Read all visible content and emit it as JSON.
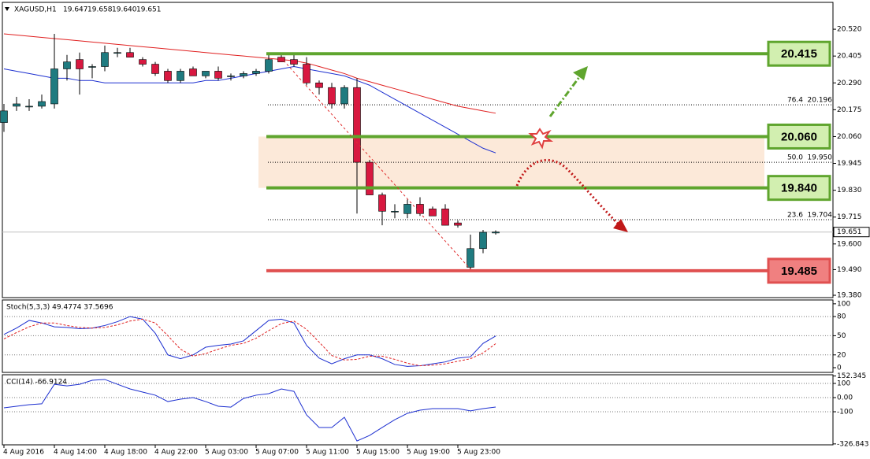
{
  "header": {
    "symbol": "XAGUSD,H1",
    "ohlc": [
      19.647,
      19.658,
      {
        "value": 19.64,
        "label": "19.640"
      },
      19.651
    ]
  },
  "chart_data": [
    {
      "type": "candlestick",
      "categories": [
        "4 Aug 2016",
        null,
        null,
        null,
        "4 Aug 14:00",
        null,
        null,
        null,
        "4 Aug 18:00",
        null,
        null,
        null,
        "4 Aug 22:00",
        null,
        null,
        null,
        "5 Aug 03:00",
        null,
        null,
        null,
        "5 Aug 07:00",
        null,
        null,
        null,
        "5 Aug 11:00",
        null,
        null,
        null,
        "5 Aug 15:00",
        null,
        null,
        null,
        "5 Aug 19:00",
        null,
        null,
        null,
        "5 Aug 23:00",
        null,
        null,
        null
      ],
      "open": [
        20.12,
        20.19,
        20.19,
        20.19,
        20.2,
        20.35,
        20.39,
        20.36,
        20.36,
        20.42,
        20.42,
        20.39,
        20.37,
        20.34,
        20.3,
        20.35,
        20.32,
        20.34,
        20.32,
        20.32,
        20.33,
        20.34,
        20.4,
        20.39,
        20.37,
        20.29,
        20.27,
        20.2,
        20.27,
        19.95,
        19.81,
        19.74,
        19.73,
        19.77,
        19.75,
        19.75,
        19.69,
        19.5,
        19.58,
        19.647
      ],
      "high": [
        20.2,
        20.23,
        20.22,
        20.24,
        20.5,
        20.41,
        20.42,
        20.37,
        20.45,
        20.44,
        20.44,
        20.4,
        20.38,
        20.35,
        20.35,
        20.36,
        20.34,
        20.36,
        20.33,
        20.34,
        20.35,
        20.41,
        20.41,
        20.41,
        20.4,
        20.3,
        20.29,
        20.28,
        20.31,
        19.96,
        19.82,
        19.77,
        19.79,
        19.8,
        19.76,
        19.77,
        19.7,
        19.64,
        19.66,
        19.658
      ],
      "low": [
        20.08,
        20.17,
        20.17,
        20.18,
        20.18,
        20.3,
        20.24,
        20.31,
        20.34,
        20.4,
        20.4,
        20.36,
        20.32,
        20.29,
        20.29,
        20.32,
        20.31,
        20.3,
        20.3,
        20.31,
        20.32,
        20.33,
        20.38,
        20.36,
        20.28,
        20.24,
        20.18,
        20.18,
        19.73,
        19.81,
        19.68,
        19.71,
        19.71,
        19.72,
        19.72,
        19.68,
        19.67,
        19.49,
        19.56,
        19.64
      ],
      "close": [
        20.17,
        20.2,
        20.19,
        20.21,
        20.35,
        20.38,
        20.35,
        20.36,
        20.42,
        20.42,
        20.4,
        20.37,
        20.33,
        20.3,
        20.34,
        20.32,
        20.34,
        20.31,
        20.32,
        20.33,
        20.34,
        20.39,
        20.38,
        20.37,
        20.29,
        20.27,
        20.2,
        20.27,
        19.95,
        19.81,
        19.74,
        19.74,
        19.77,
        19.73,
        19.72,
        19.68,
        19.68,
        19.58,
        19.65,
        19.651
      ],
      "up_color": "#1f7b80",
      "down_color": "#d81840",
      "series": [
        {
          "color": "#e02020",
          "values": [
            20.5,
            20.495,
            20.49,
            20.485,
            20.48,
            20.475,
            20.47,
            20.465,
            20.46,
            20.455,
            20.45,
            20.445,
            20.44,
            20.435,
            20.43,
            20.425,
            20.42,
            20.415,
            20.41,
            20.405,
            20.4,
            20.395,
            20.39,
            20.385,
            20.375,
            20.36,
            20.345,
            20.33,
            20.31,
            20.295,
            20.28,
            20.265,
            20.25,
            20.235,
            20.22,
            20.205,
            20.19,
            20.18,
            20.17,
            20.16
          ]
        },
        {
          "color": "#1c2fd0",
          "values": [
            20.35,
            20.34,
            20.33,
            20.32,
            20.31,
            20.31,
            20.3,
            20.3,
            20.29,
            20.29,
            20.29,
            20.29,
            20.29,
            20.29,
            20.29,
            20.29,
            20.3,
            20.3,
            20.31,
            20.32,
            20.33,
            20.34,
            20.35,
            20.36,
            20.35,
            20.34,
            20.33,
            20.32,
            20.3,
            20.28,
            20.25,
            20.22,
            20.19,
            20.16,
            20.13,
            20.1,
            20.07,
            20.04,
            20.01,
            19.99
          ]
        }
      ],
      "ylim": [
        19.37,
        20.635
      ],
      "yticks": [
        {
          "value": 20.52,
          "label": "20.520"
        },
        20.405,
        {
          "value": 20.29,
          "label": "20.290"
        },
        20.175,
        {
          "value": 20.06,
          "label": "20.060"
        },
        19.945,
        {
          "value": 19.83,
          "label": "19.830"
        },
        19.715,
        {
          "value": 19.6,
          "label": "19.600"
        },
        {
          "value": 19.49,
          "label": "19.490"
        },
        {
          "value": 19.38,
          "label": "19.380"
        }
      ],
      "levels": [
        {
          "price": 20.415,
          "color": "#5fa52e",
          "box_color": "#d2efb0"
        },
        {
          "price": {
            "value": 20.06,
            "label": "20.060"
          },
          "color": "#5fa52e",
          "box_color": "#d2efb0"
        },
        {
          "price": {
            "value": 19.84,
            "label": "19.840"
          },
          "color": "#5fa52e",
          "box_color": "#d2efb0"
        },
        {
          "price": 19.485,
          "color": "#e05050",
          "box_color": "#f08080"
        }
      ],
      "zone_color": "#fbe3cf",
      "fib": [
        {
          "ratio": 76.4,
          "price": 20.196
        },
        {
          "ratio": {
            "value": 50,
            "label": "50.0"
          },
          "price": {
            "value": 19.95,
            "label": "19.950"
          }
        },
        {
          "ratio": 23.6,
          "price": 19.704
        }
      ],
      "last_price": 19.651
    },
    {
      "type": "line",
      "title": "Stoch(5,3,3) 49.4774 37.5696",
      "series": [
        {
          "color": "#1c2fd0",
          "values": [
            52,
            62,
            74,
            70,
            64,
            63,
            61,
            62,
            66,
            72,
            80,
            76,
            54,
            20,
            14,
            20,
            32,
            35,
            37,
            42,
            58,
            74,
            76,
            70,
            35,
            15,
            6,
            14,
            20,
            20,
            14,
            5,
            2,
            3,
            6,
            9,
            15,
            17,
            38,
            49.4774
          ]
        },
        {
          "color": "#e02020",
          "dashed": true,
          "values": [
            45,
            55,
            64,
            70,
            70,
            66,
            63,
            62,
            63,
            67,
            73,
            76,
            70,
            50,
            29,
            18,
            22,
            29,
            35,
            38,
            46,
            58,
            69,
            73,
            60,
            40,
            19,
            12,
            13,
            18,
            18,
            13,
            7,
            3,
            4,
            6,
            10,
            14,
            23,
            37.5696
          ]
        }
      ],
      "ylim": [
        -7.4,
        106
      ],
      "yticks": [
        100,
        80,
        50,
        20,
        0
      ],
      "level_lines": [
        80,
        50,
        20
      ]
    },
    {
      "type": "line",
      "title": "CCI(14) -66.9124",
      "series": [
        {
          "color": "#1c2fd0",
          "values": [
            -72,
            -61,
            -50,
            -44,
            94,
            83,
            94,
            122,
            128,
            94,
            61,
            39,
            17,
            -28,
            -11,
            0,
            -28,
            -61,
            -67,
            -6,
            17,
            28,
            61,
            44,
            -122,
            -211,
            -211,
            -139,
            -306,
            -267,
            -211,
            -156,
            -111,
            -89,
            -78,
            -78,
            -78,
            -94,
            -78,
            -66.9124
          ]
        }
      ],
      "ylim": [
        -333.3,
        161.1
      ],
      "yticks": [
        152.345,
        100,
        {
          "value": 0,
          "label": "0.00"
        },
        -100,
        -326.843
      ],
      "level_lines": [
        100,
        0,
        -100
      ]
    }
  ]
}
